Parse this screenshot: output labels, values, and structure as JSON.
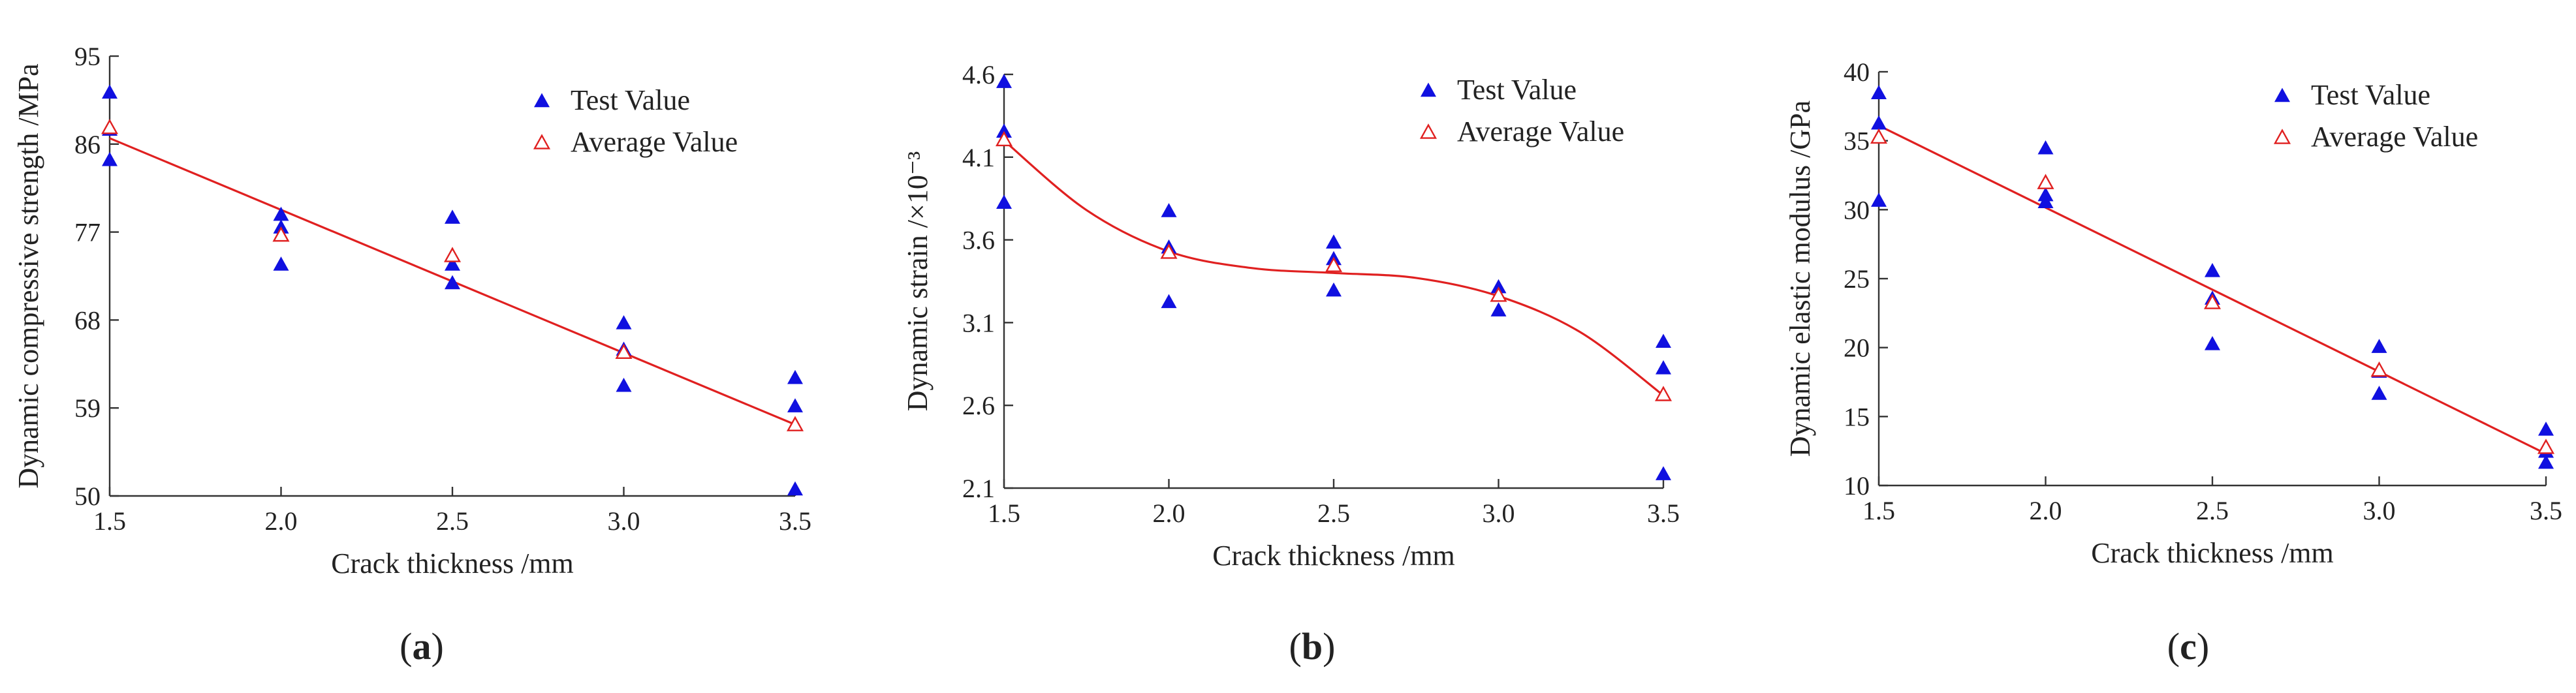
{
  "colors": {
    "test": "#1010e0",
    "average": "#e02020",
    "fit": "#e02020",
    "axis": "#333333"
  },
  "chart_data": [
    {
      "id": "a",
      "type": "scatter",
      "panel_label": "a",
      "xlabel": "Crack thickness /mm",
      "ylabel": "Dynamic compressive strength /MPa",
      "xlim": [
        1.5,
        3.5
      ],
      "ylim": [
        50,
        95
      ],
      "xticks": [
        "1.5",
        "2.0",
        "2.5",
        "3.0",
        "3.5"
      ],
      "yticks": [
        "50",
        "59",
        "68",
        "77",
        "86",
        "95"
      ],
      "legend": {
        "test": "Test Value",
        "average": "Average Value"
      },
      "series": [
        {
          "name": "Test Value",
          "marker": "filled-triangle",
          "points": [
            [
              1.5,
              91.2
            ],
            [
              1.5,
              87.4
            ],
            [
              1.5,
              84.3
            ],
            [
              2.0,
              78.7
            ],
            [
              2.0,
              77.4
            ],
            [
              2.0,
              73.6
            ],
            [
              2.5,
              78.4
            ],
            [
              2.5,
              73.6
            ],
            [
              2.5,
              71.7
            ],
            [
              3.0,
              67.6
            ],
            [
              3.0,
              64.9
            ],
            [
              3.0,
              61.2
            ],
            [
              3.5,
              62.0
            ],
            [
              3.5,
              59.1
            ],
            [
              3.5,
              50.6
            ]
          ]
        },
        {
          "name": "Average Value",
          "marker": "open-triangle",
          "points": [
            [
              1.5,
              87.6
            ],
            [
              2.0,
              76.6
            ],
            [
              2.5,
              74.5
            ],
            [
              3.0,
              64.6
            ],
            [
              3.5,
              57.2
            ]
          ]
        }
      ],
      "fit": {
        "kind": "linear",
        "points": [
          [
            1.5,
            86.6
          ],
          [
            3.5,
            57.3
          ]
        ]
      }
    },
    {
      "id": "b",
      "type": "scatter",
      "panel_label": "b",
      "xlabel": "Crack thickness /mm",
      "ylabel": "Dynamic strain /×10⁻³",
      "xlim": [
        1.5,
        3.5
      ],
      "ylim": [
        2.1,
        4.6
      ],
      "xticks": [
        "1.5",
        "2.0",
        "2.5",
        "3.0",
        "3.5"
      ],
      "yticks": [
        "2.1",
        "2.6",
        "3.1",
        "3.6",
        "4.1",
        "4.6"
      ],
      "legend": {
        "test": "Test Value",
        "average": "Average Value"
      },
      "series": [
        {
          "name": "Test Value",
          "marker": "filled-triangle",
          "points": [
            [
              1.5,
              4.55
            ],
            [
              1.5,
              4.25
            ],
            [
              1.5,
              3.82
            ],
            [
              2.0,
              3.77
            ],
            [
              2.0,
              3.55
            ],
            [
              2.0,
              3.22
            ],
            [
              2.5,
              3.58
            ],
            [
              2.5,
              3.48
            ],
            [
              2.5,
              3.29
            ],
            [
              3.0,
              3.31
            ],
            [
              3.0,
              3.17
            ],
            [
              3.5,
              2.98
            ],
            [
              3.5,
              2.82
            ],
            [
              3.5,
              2.18
            ]
          ]
        },
        {
          "name": "Average Value",
          "marker": "open-triangle",
          "points": [
            [
              1.5,
              4.2
            ],
            [
              2.0,
              3.52
            ],
            [
              2.5,
              3.44
            ],
            [
              3.0,
              3.26
            ],
            [
              3.5,
              2.66
            ]
          ]
        }
      ],
      "fit": {
        "kind": "cubic",
        "points": [
          [
            1.5,
            4.2
          ],
          [
            1.75,
            3.78
          ],
          [
            2.0,
            3.53
          ],
          [
            2.25,
            3.43
          ],
          [
            2.5,
            3.4
          ],
          [
            2.75,
            3.37
          ],
          [
            3.0,
            3.26
          ],
          [
            3.25,
            3.04
          ],
          [
            3.5,
            2.66
          ]
        ]
      }
    },
    {
      "id": "c",
      "type": "scatter",
      "panel_label": "c",
      "xlabel": "Crack thickness /mm",
      "ylabel": "Dynamic elastic modulus /GPa",
      "xlim": [
        1.5,
        3.5
      ],
      "ylim": [
        10,
        40
      ],
      "xticks": [
        "1.5",
        "2.0",
        "2.5",
        "3.0",
        "3.5"
      ],
      "yticks": [
        "10",
        "15",
        "20",
        "25",
        "30",
        "35",
        "40"
      ],
      "legend": {
        "test": "Test Value",
        "average": "Average Value"
      },
      "series": [
        {
          "name": "Test Value",
          "marker": "filled-triangle",
          "points": [
            [
              1.5,
              38.4
            ],
            [
              1.5,
              36.2
            ],
            [
              1.5,
              30.6
            ],
            [
              2.0,
              34.4
            ],
            [
              2.0,
              31.0
            ],
            [
              2.0,
              30.5
            ],
            [
              2.5,
              25.5
            ],
            [
              2.5,
              23.5
            ],
            [
              2.5,
              20.2
            ],
            [
              3.0,
              20.0
            ],
            [
              3.0,
              18.2
            ],
            [
              3.0,
              16.6
            ],
            [
              3.5,
              14.0
            ],
            [
              3.5,
              12.4
            ],
            [
              3.5,
              11.6
            ]
          ]
        },
        {
          "name": "Average Value",
          "marker": "open-triangle",
          "points": [
            [
              1.5,
              35.2
            ],
            [
              2.0,
              31.9
            ],
            [
              2.5,
              23.2
            ],
            [
              3.0,
              18.3
            ],
            [
              3.5,
              12.7
            ]
          ]
        }
      ],
      "fit": {
        "kind": "linear",
        "points": [
          [
            1.5,
            36.1
          ],
          [
            3.5,
            12.3
          ]
        ]
      }
    }
  ]
}
